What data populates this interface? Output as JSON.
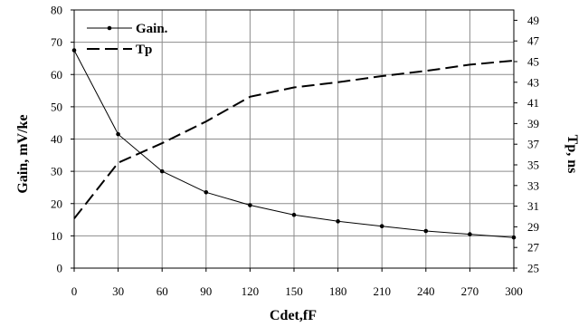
{
  "chart_data": {
    "type": "line",
    "xlabel": "Cdet,fF",
    "ylabel_left": "Gain, mV/ke",
    "ylabel_right": "Tp, ns",
    "x": [
      0,
      30,
      60,
      90,
      120,
      150,
      180,
      210,
      240,
      270,
      300
    ],
    "x_ticks": [
      "0",
      "30",
      "60",
      "90",
      "120",
      "150",
      "180",
      "210",
      "240",
      "270",
      "300"
    ],
    "y_left_lim": [
      0,
      80
    ],
    "y_left_ticks": [
      "0",
      "10",
      "20",
      "30",
      "40",
      "50",
      "60",
      "70",
      "80"
    ],
    "y_right_lim": [
      25,
      50
    ],
    "y_right_ticks": [
      "25",
      "27",
      "29",
      "31",
      "33",
      "35",
      "37",
      "39",
      "41",
      "43",
      "45",
      "47",
      "49"
    ],
    "grid": true,
    "legend_position": "top-left",
    "series": [
      {
        "name": "Gain.",
        "axis": "left",
        "style": "solid-with-markers",
        "color": "#000000",
        "values": [
          67.5,
          41.5,
          30,
          23.5,
          19.5,
          16.5,
          14.5,
          13,
          11.5,
          10.5,
          9.5
        ]
      },
      {
        "name": "Tp",
        "axis": "right",
        "style": "dashed",
        "color": "#000000",
        "values": [
          29.8,
          35.2,
          37.1,
          39.2,
          41.6,
          42.5,
          43.0,
          43.6,
          44.1,
          44.7,
          45.1
        ]
      }
    ]
  }
}
